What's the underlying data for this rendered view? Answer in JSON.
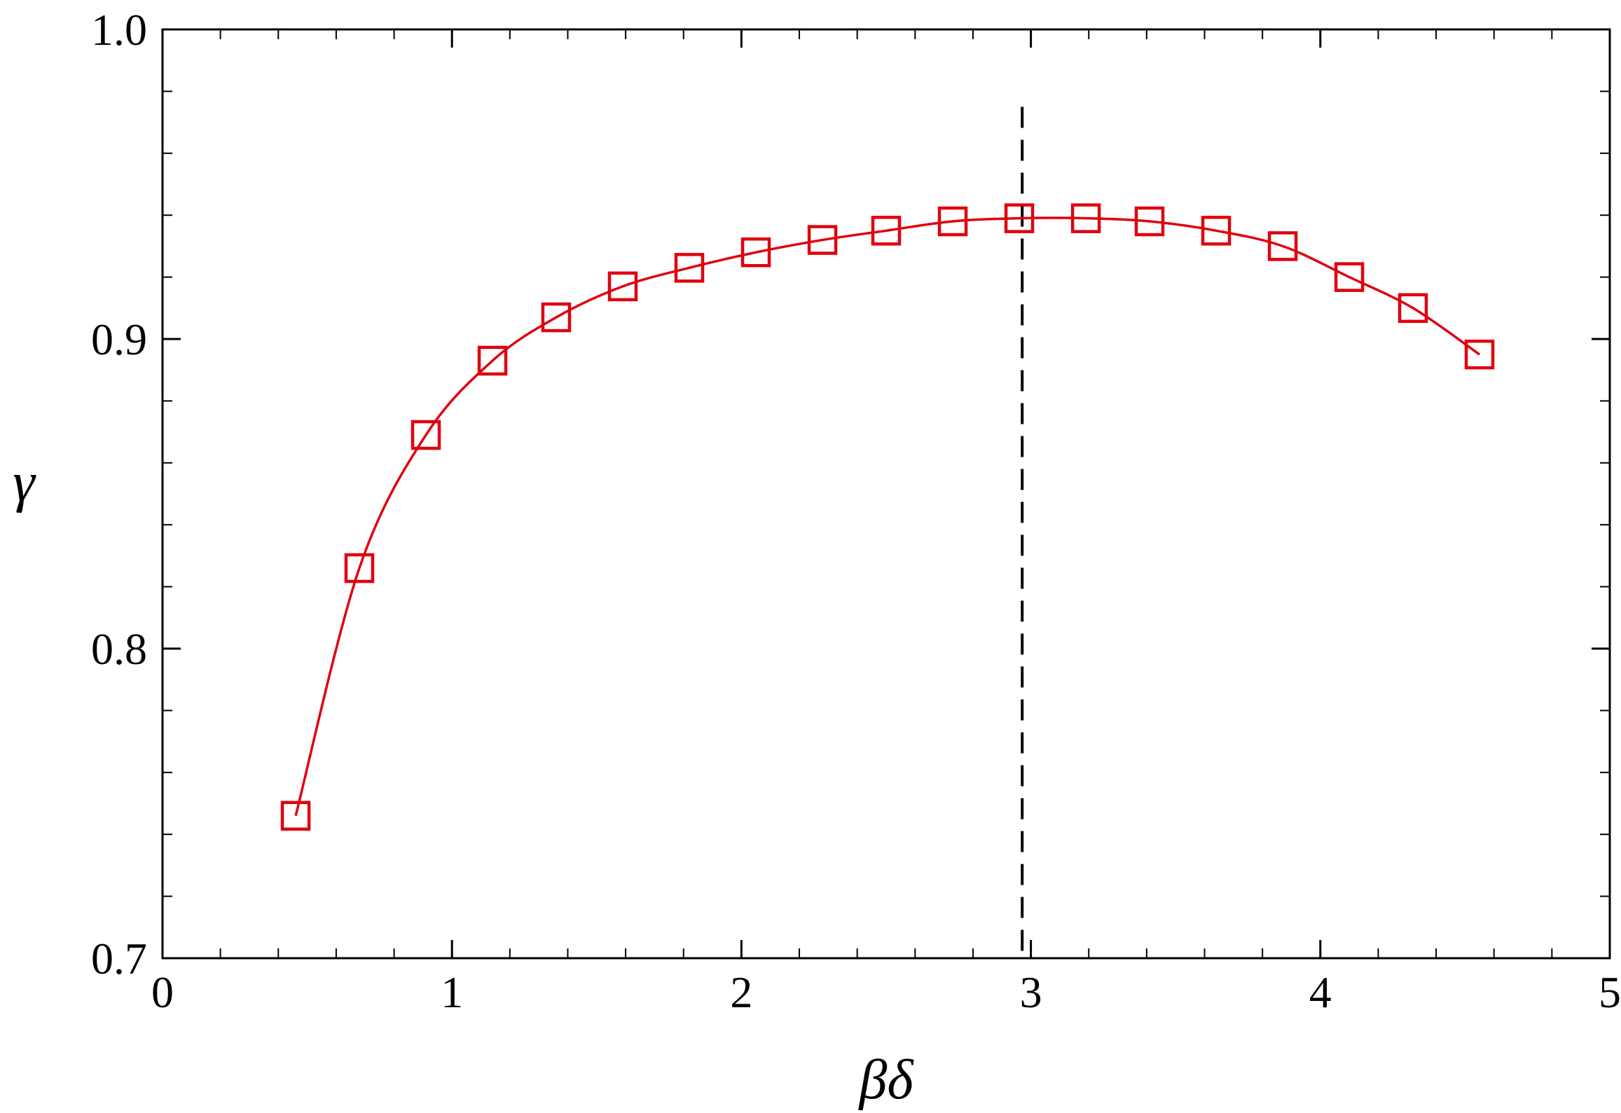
{
  "chart_data": {
    "type": "line",
    "xlabel": "βδ",
    "ylabel": "γ",
    "xlim": [
      0,
      5
    ],
    "ylim": [
      0.7,
      1.0
    ],
    "x_ticks": [
      0,
      1,
      2,
      3,
      4,
      5
    ],
    "x_tick_labels": [
      "0",
      "1",
      "2",
      "3",
      "4",
      "5"
    ],
    "y_ticks": [
      0.7,
      0.8,
      0.9,
      1.0
    ],
    "y_tick_labels": [
      "0.7",
      "0.8",
      "0.9",
      "1.0"
    ],
    "x_minor_step": 0.2,
    "y_minor_step": 0.02,
    "grid": false,
    "series": [
      {
        "color": "#e0000f",
        "marker": "square-open",
        "line": "solid",
        "x": [
          0.46,
          0.68,
          0.91,
          1.14,
          1.36,
          1.59,
          1.82,
          2.05,
          2.28,
          2.5,
          2.73,
          2.96,
          3.19,
          3.41,
          3.64,
          3.87,
          4.1,
          4.32,
          4.55
        ],
        "y": [
          0.746,
          0.826,
          0.869,
          0.893,
          0.907,
          0.917,
          0.923,
          0.928,
          0.932,
          0.935,
          0.938,
          0.939,
          0.939,
          0.938,
          0.935,
          0.93,
          0.92,
          0.91,
          0.895
        ]
      }
    ],
    "reference_lines": [
      {
        "orientation": "vertical",
        "x": 2.97,
        "y_from": 0.7,
        "y_to": 0.975,
        "style": "dashed",
        "color": "#000000"
      }
    ]
  }
}
